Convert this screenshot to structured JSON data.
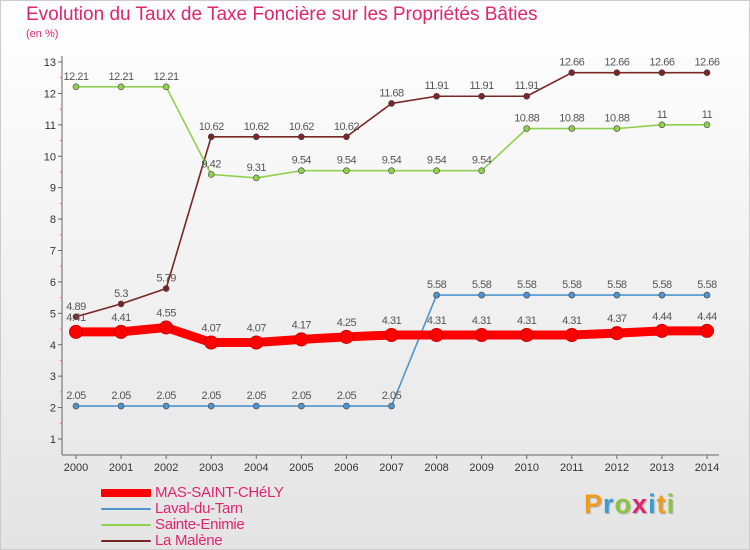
{
  "chart_data": {
    "type": "line",
    "title": "Evolution du Taux de Taxe Foncière sur les Propriétés Bâties",
    "ylabel": "(en %)",
    "xlabel": "",
    "ylim": [
      1,
      13
    ],
    "yticks": [
      "1",
      "2",
      "3",
      "4",
      "5",
      "6",
      "7",
      "8",
      "9",
      "10",
      "11",
      "12",
      "13"
    ],
    "x": [
      "2000",
      "2001",
      "2002",
      "2003",
      "2004",
      "2005",
      "2006",
      "2007",
      "2008",
      "2009",
      "2010",
      "2011",
      "2012",
      "2013",
      "2014"
    ],
    "grid": false,
    "legend_position": "bottom-left",
    "series": [
      {
        "name": "La Malène",
        "color": "#7a2626",
        "values": [
          4.89,
          5.3,
          5.79,
          10.62,
          10.62,
          10.62,
          10.62,
          11.68,
          11.91,
          11.91,
          11.91,
          12.66,
          12.66,
          12.66,
          12.66
        ],
        "labels": [
          "4.89",
          "5.3",
          "5.79",
          "10.62",
          "10.62",
          "10.62",
          "10.62",
          "11.68",
          "11.91",
          "11.91",
          "11.91",
          "12.66",
          "12.66",
          "12.66",
          "12.66"
        ]
      },
      {
        "name": "Sainte-Enimie",
        "color": "#8fd14f",
        "values": [
          12.21,
          12.21,
          12.21,
          9.42,
          9.31,
          9.54,
          9.54,
          9.54,
          9.54,
          9.54,
          10.88,
          10.88,
          10.88,
          11,
          11
        ],
        "labels": [
          "12.21",
          "12.21",
          "12.21",
          "9.42",
          "9.31",
          "9.54",
          "9.54",
          "9.54",
          "9.54",
          "9.54",
          "10.88",
          "10.88",
          "10.88",
          "11",
          "11"
        ]
      },
      {
        "name": "Laval-du-Tarn",
        "color": "#4f94cf",
        "values": [
          2.05,
          2.05,
          2.05,
          2.05,
          2.05,
          2.05,
          2.05,
          2.05,
          5.58,
          5.58,
          5.58,
          5.58,
          5.58,
          5.58,
          5.58
        ],
        "labels": [
          "2.05",
          "2.05",
          "2.05",
          "2.05",
          "2.05",
          "2.05",
          "2.05",
          "2.05",
          "5.58",
          "5.58",
          "5.58",
          "5.58",
          "5.58",
          "5.58",
          "5.58"
        ]
      },
      {
        "name": "MAS-SAINT-CHéLY",
        "color": "#ff0000",
        "values": [
          4.41,
          4.41,
          4.55,
          4.07,
          4.07,
          4.17,
          4.25,
          4.31,
          4.31,
          4.31,
          4.31,
          4.31,
          4.37,
          4.44,
          4.44
        ],
        "labels": [
          "4.41",
          "4.41",
          "4.55",
          "4.07",
          "4.07",
          "4.17",
          "4.25",
          "4.31",
          "4.31",
          "4.31",
          "4.31",
          "4.31",
          "4.37",
          "4.44",
          "4.44"
        ]
      }
    ]
  },
  "legend": {
    "items": [
      {
        "name": "MAS-SAINT-CHéLY",
        "color": "#ff0000"
      },
      {
        "name": "Laval-du-Tarn",
        "color": "#4f94cf"
      },
      {
        "name": "Sainte-Enimie",
        "color": "#8fd14f"
      },
      {
        "name": "La Malène",
        "color": "#7a2626"
      }
    ]
  },
  "brand": {
    "letters": [
      "P",
      "r",
      "o",
      "x",
      "i",
      "t",
      "i"
    ]
  }
}
